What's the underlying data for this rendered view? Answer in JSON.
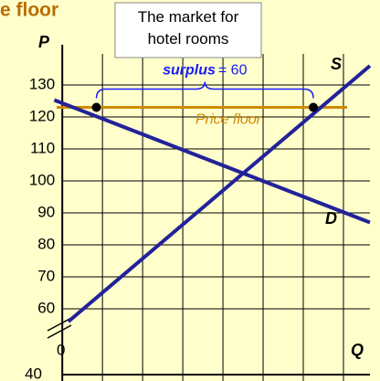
{
  "chart_data": {
    "type": "line",
    "title": "e floor",
    "annotation": "The market for hotel rooms",
    "x_label": "Q",
    "y_label": "P",
    "xlim": [
      -3,
      76.6
    ],
    "ylim": [
      54,
      144
    ],
    "xticks": [
      10,
      20,
      30,
      40,
      50,
      60,
      70
    ],
    "yticks": [
      60,
      70,
      80,
      90,
      100,
      110,
      120,
      130
    ],
    "grid": true,
    "break_labels": [
      "0",
      "40"
    ],
    "series": [
      {
        "name": "D",
        "color": "#22229a",
        "x": [
          -2,
          76.6
        ],
        "values": [
          125.3,
          87
        ]
      },
      {
        "name": "S",
        "color": "#22229a",
        "x": [
          1.5,
          76.6
        ],
        "values": [
          56,
          136
        ]
      }
    ],
    "price_floor": {
      "label": "Price floor",
      "value": 123,
      "color": "#d08a00"
    },
    "surplus": {
      "label": "surplus",
      "value_label": "= 60",
      "value": 60,
      "from": 8.5,
      "to": 62.5,
      "color": "#1a1aff"
    }
  }
}
